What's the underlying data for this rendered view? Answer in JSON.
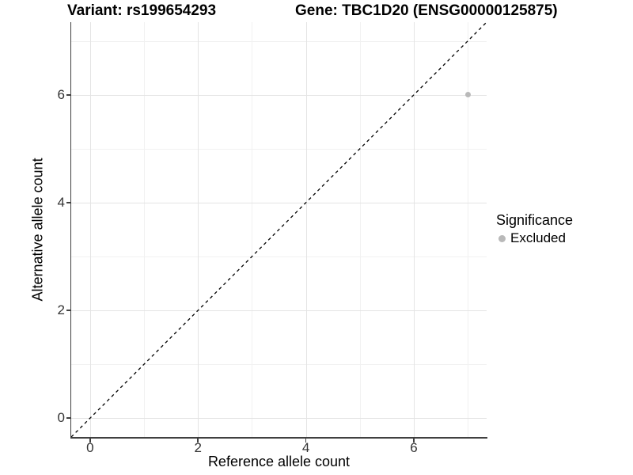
{
  "titles": {
    "variant": "Variant: rs199654293",
    "gene": "Gene: TBC1D20 (ENSG00000125875)"
  },
  "legend": {
    "title": "Significance",
    "entries": [
      {
        "label": "Excluded",
        "marker": "circle",
        "color": "#b9b9b9"
      }
    ]
  },
  "chart_data": {
    "type": "scatter",
    "xlabel": "Reference allele count",
    "ylabel": "Alternative allele count",
    "xlim": [
      -0.35,
      7.35
    ],
    "ylim": [
      -0.35,
      7.35
    ],
    "x_major_ticks": [
      0,
      2,
      4,
      6
    ],
    "y_major_ticks": [
      0,
      2,
      4,
      6
    ],
    "x_minor_ticks": [
      1,
      3,
      5,
      7
    ],
    "y_minor_ticks": [
      1,
      3,
      5,
      7
    ],
    "grid": true,
    "legend_position": "right",
    "series": [
      {
        "name": "Excluded",
        "color": "#b9b9b9",
        "points": [
          {
            "x": 7,
            "y": 6
          }
        ]
      }
    ],
    "reference_line": {
      "shape": "identity y=x",
      "style": "dashed",
      "color": "#000000",
      "from": [
        -0.35,
        -0.35
      ],
      "to": [
        7.35,
        7.35
      ]
    },
    "colors": {
      "grid_major": "#e4e4e4",
      "grid_minor": "#f1f1f1",
      "axis": "#404040",
      "tick_text": "#333333"
    }
  }
}
